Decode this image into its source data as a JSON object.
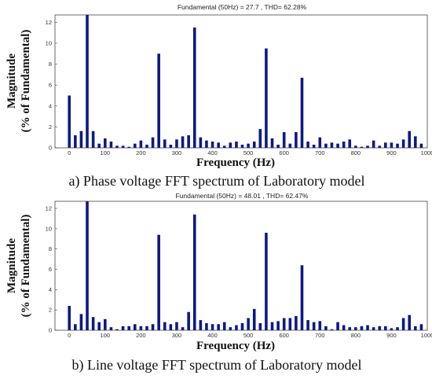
{
  "chart_data": [
    {
      "type": "bar",
      "title": "Fundamental (50Hz) = 27.7 , THD= 62.28%",
      "xlabel": "Frequency (Hz)",
      "ylabel_line1": "Magnitude",
      "ylabel_line2": "(% of Fundamental)",
      "caption": "a) Phase voltage FFT spectrum of Laboratory model",
      "xlim": [
        -40,
        1000
      ],
      "ylim": [
        0,
        12.7
      ],
      "xticks": [
        0,
        100,
        200,
        300,
        400,
        500,
        600,
        700,
        800,
        900,
        1000
      ],
      "yticks": [
        0,
        2,
        4,
        6,
        8,
        10,
        12
      ],
      "x": [
        0,
        16.7,
        33.3,
        50,
        66.7,
        83.3,
        100,
        116.7,
        133.3,
        150,
        166.7,
        183.3,
        200,
        216.7,
        233.3,
        250,
        266.7,
        283.3,
        300,
        316.7,
        333.3,
        350,
        366.7,
        383.3,
        400,
        416.7,
        433.3,
        450,
        466.7,
        483.3,
        500,
        516.7,
        533.3,
        550,
        566.7,
        583.3,
        600,
        616.7,
        633.3,
        650,
        666.7,
        683.3,
        700,
        716.7,
        733.3,
        750,
        766.7,
        783.3,
        800,
        816.7,
        833.3,
        850,
        866.7,
        883.3,
        900,
        916.7,
        933.3,
        950,
        966.7,
        983.3
      ],
      "values": [
        5.0,
        1.2,
        1.6,
        12.7,
        1.6,
        0.4,
        0.9,
        0.6,
        0.2,
        0.2,
        0.1,
        0.4,
        0.7,
        0.3,
        1.0,
        9.0,
        0.8,
        0.3,
        0.8,
        1.1,
        1.2,
        11.5,
        1.0,
        0.7,
        0.6,
        0.5,
        0.2,
        0.5,
        0.6,
        0.3,
        0.4,
        0.6,
        1.8,
        9.5,
        0.9,
        0.3,
        1.5,
        0.4,
        1.5,
        6.7,
        0.6,
        0.3,
        1.0,
        0.4,
        0.5,
        0.4,
        0.6,
        0.8,
        0.2,
        0.1,
        0.2,
        0.7,
        0.2,
        0.5,
        0.5,
        0.4,
        0.8,
        1.6,
        1.1,
        0.4
      ],
      "color": "#0b1a85"
    },
    {
      "type": "bar",
      "title": "Fundamental (50Hz) = 48.01 , THD= 62.47%",
      "xlabel": "Frequency (Hz)",
      "ylabel_line1": "Magnitude",
      "ylabel_line2": "(% of Fundamental)",
      "caption": "b) Line voltage FFT spectrum of Laboratory model",
      "xlim": [
        -40,
        1000
      ],
      "ylim": [
        0,
        12.7
      ],
      "xticks": [
        0,
        100,
        200,
        300,
        400,
        500,
        600,
        700,
        800,
        900,
        1000
      ],
      "yticks": [
        0,
        2,
        4,
        6,
        8,
        10,
        12
      ],
      "x": [
        0,
        16.7,
        33.3,
        50,
        66.7,
        83.3,
        100,
        116.7,
        133.3,
        150,
        166.7,
        183.3,
        200,
        216.7,
        233.3,
        250,
        266.7,
        283.3,
        300,
        316.7,
        333.3,
        350,
        366.7,
        383.3,
        400,
        416.7,
        433.3,
        450,
        466.7,
        483.3,
        500,
        516.7,
        533.3,
        550,
        566.7,
        583.3,
        600,
        616.7,
        633.3,
        650,
        666.7,
        683.3,
        700,
        716.7,
        733.3,
        750,
        766.7,
        783.3,
        800,
        816.7,
        833.3,
        850,
        866.7,
        883.3,
        900,
        916.7,
        933.3,
        950,
        966.7,
        983.3
      ],
      "values": [
        2.4,
        0.6,
        1.6,
        12.7,
        1.3,
        0.8,
        1.1,
        0.3,
        0.1,
        0.4,
        0.4,
        0.6,
        0.4,
        0.4,
        0.6,
        9.4,
        0.8,
        0.6,
        0.8,
        0.3,
        1.8,
        11.4,
        1.0,
        0.7,
        0.6,
        0.6,
        0.8,
        0.3,
        0.5,
        0.7,
        1.2,
        2.1,
        0.7,
        9.6,
        0.8,
        0.9,
        1.2,
        1.2,
        1.4,
        6.4,
        1.0,
        0.8,
        0.9,
        0.4,
        0.1,
        0.8,
        0.5,
        0.3,
        0.3,
        0.4,
        0.5,
        0.3,
        0.4,
        0.4,
        0.2,
        0.3,
        1.2,
        1.5,
        0.4,
        0.6
      ],
      "color": "#0b1a85"
    }
  ]
}
